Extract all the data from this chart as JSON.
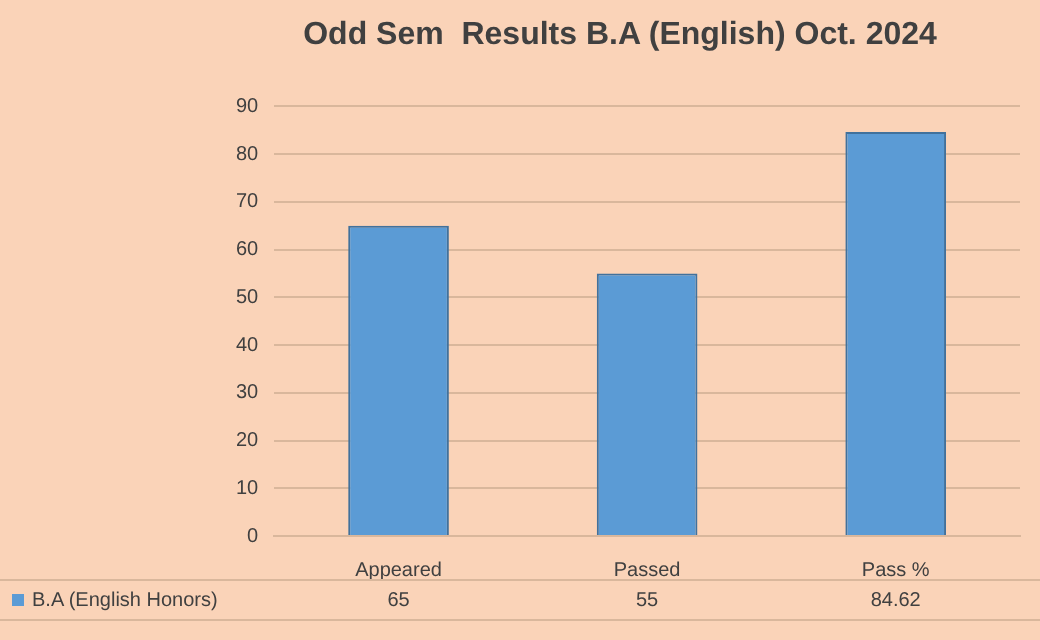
{
  "chart_data": {
    "type": "bar",
    "title": "Odd Sem  Results B.A (English) Oct. 2024",
    "categories": [
      "Appeared",
      "Passed",
      "Pass %"
    ],
    "series": [
      {
        "name": "B.A (English Honors)",
        "color": "#5b9bd5",
        "values": [
          65,
          55,
          84.62
        ]
      }
    ],
    "ylim": [
      0,
      90
    ],
    "yticks": [
      0,
      10,
      20,
      30,
      40,
      50,
      60,
      70,
      80,
      90
    ],
    "grid": "y",
    "legend": "bottom left",
    "data_labels": true
  }
}
